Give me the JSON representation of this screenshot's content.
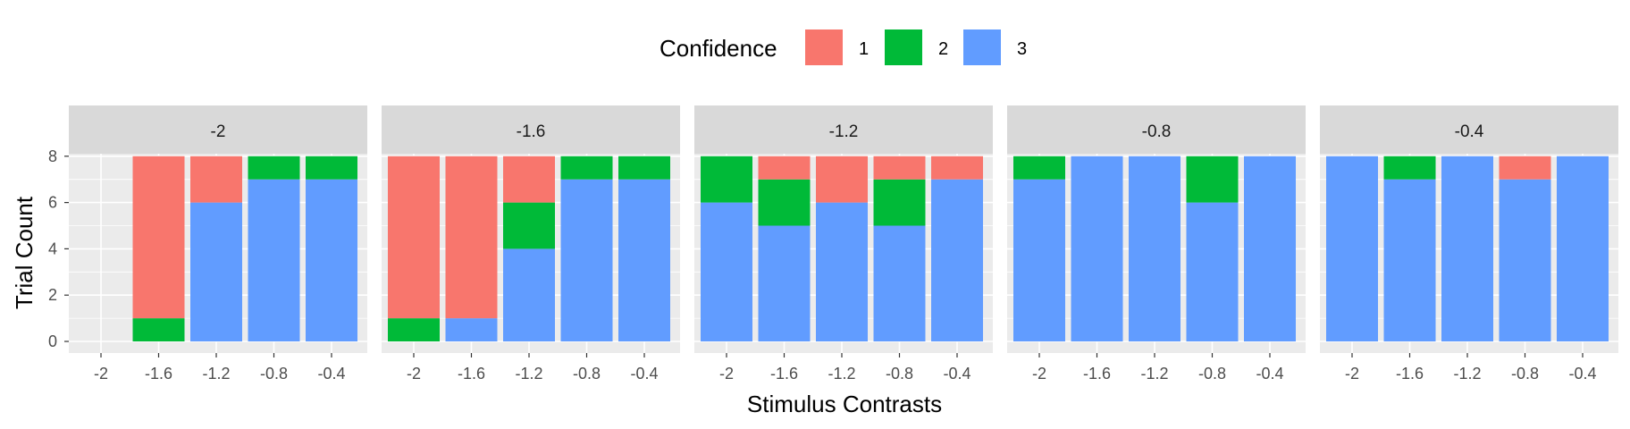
{
  "chart_data": {
    "type": "bar",
    "stacked": true,
    "facet_by": "panel",
    "legend": {
      "title": "Confidence",
      "position": "top",
      "entries": [
        {
          "key": "1",
          "label": "1",
          "color": "#F8766D"
        },
        {
          "key": "2",
          "label": "2",
          "color": "#00BA38"
        },
        {
          "key": "3",
          "label": "3",
          "color": "#619CFF"
        }
      ]
    },
    "xlabel": "Stimulus Contrasts",
    "ylabel": "Trial Count",
    "ylim": [
      0,
      9
    ],
    "yticks": [
      0,
      2,
      4,
      6,
      8
    ],
    "categories": [
      "-2",
      "-1.6",
      "-1.2",
      "-0.8",
      "-0.4"
    ],
    "stack_order_bottom_to_top": [
      "3",
      "2",
      "1"
    ],
    "panels": [
      {
        "label": "-2",
        "bars": [
          {
            "x": "-2",
            "c1": 0,
            "c2": 0,
            "c3": 0
          },
          {
            "x": "-1.6",
            "c1": 7,
            "c2": 1,
            "c3": 0
          },
          {
            "x": "-1.2",
            "c1": 2,
            "c2": 0,
            "c3": 6
          },
          {
            "x": "-0.8",
            "c1": 0,
            "c2": 1,
            "c3": 7
          },
          {
            "x": "-0.4",
            "c1": 0,
            "c2": 1,
            "c3": 7
          }
        ]
      },
      {
        "label": "-1.6",
        "bars": [
          {
            "x": "-2",
            "c1": 7,
            "c2": 1,
            "c3": 0
          },
          {
            "x": "-1.6",
            "c1": 7,
            "c2": 0,
            "c3": 1
          },
          {
            "x": "-1.2",
            "c1": 2,
            "c2": 2,
            "c3": 4
          },
          {
            "x": "-0.8",
            "c1": 0,
            "c2": 1,
            "c3": 7
          },
          {
            "x": "-0.4",
            "c1": 0,
            "c2": 1,
            "c3": 7
          }
        ]
      },
      {
        "label": "-1.2",
        "bars": [
          {
            "x": "-2",
            "c1": 0,
            "c2": 2,
            "c3": 6
          },
          {
            "x": "-1.6",
            "c1": 1,
            "c2": 2,
            "c3": 5
          },
          {
            "x": "-1.2",
            "c1": 2,
            "c2": 0,
            "c3": 6
          },
          {
            "x": "-0.8",
            "c1": 1,
            "c2": 2,
            "c3": 5
          },
          {
            "x": "-0.4",
            "c1": 1,
            "c2": 0,
            "c3": 7
          }
        ]
      },
      {
        "label": "-0.8",
        "bars": [
          {
            "x": "-2",
            "c1": 0,
            "c2": 1,
            "c3": 7
          },
          {
            "x": "-1.6",
            "c1": 0,
            "c2": 0,
            "c3": 8
          },
          {
            "x": "-1.2",
            "c1": 0,
            "c2": 0,
            "c3": 8
          },
          {
            "x": "-0.8",
            "c1": 0,
            "c2": 2,
            "c3": 6
          },
          {
            "x": "-0.4",
            "c1": 0,
            "c2": 0,
            "c3": 8
          }
        ]
      },
      {
        "label": "-0.4",
        "bars": [
          {
            "x": "-2",
            "c1": 0,
            "c2": 0,
            "c3": 8
          },
          {
            "x": "-1.6",
            "c1": 0,
            "c2": 1,
            "c3": 7
          },
          {
            "x": "-1.2",
            "c1": 0,
            "c2": 0,
            "c3": 8
          },
          {
            "x": "-0.8",
            "c1": 1,
            "c2": 0,
            "c3": 7
          },
          {
            "x": "-0.4",
            "c1": 0,
            "c2": 0,
            "c3": 8
          }
        ]
      }
    ],
    "grid": true,
    "panel_background": "#EBEBEB",
    "strip_background": "#D9D9D9",
    "gridline_color": "#FFFFFF"
  }
}
